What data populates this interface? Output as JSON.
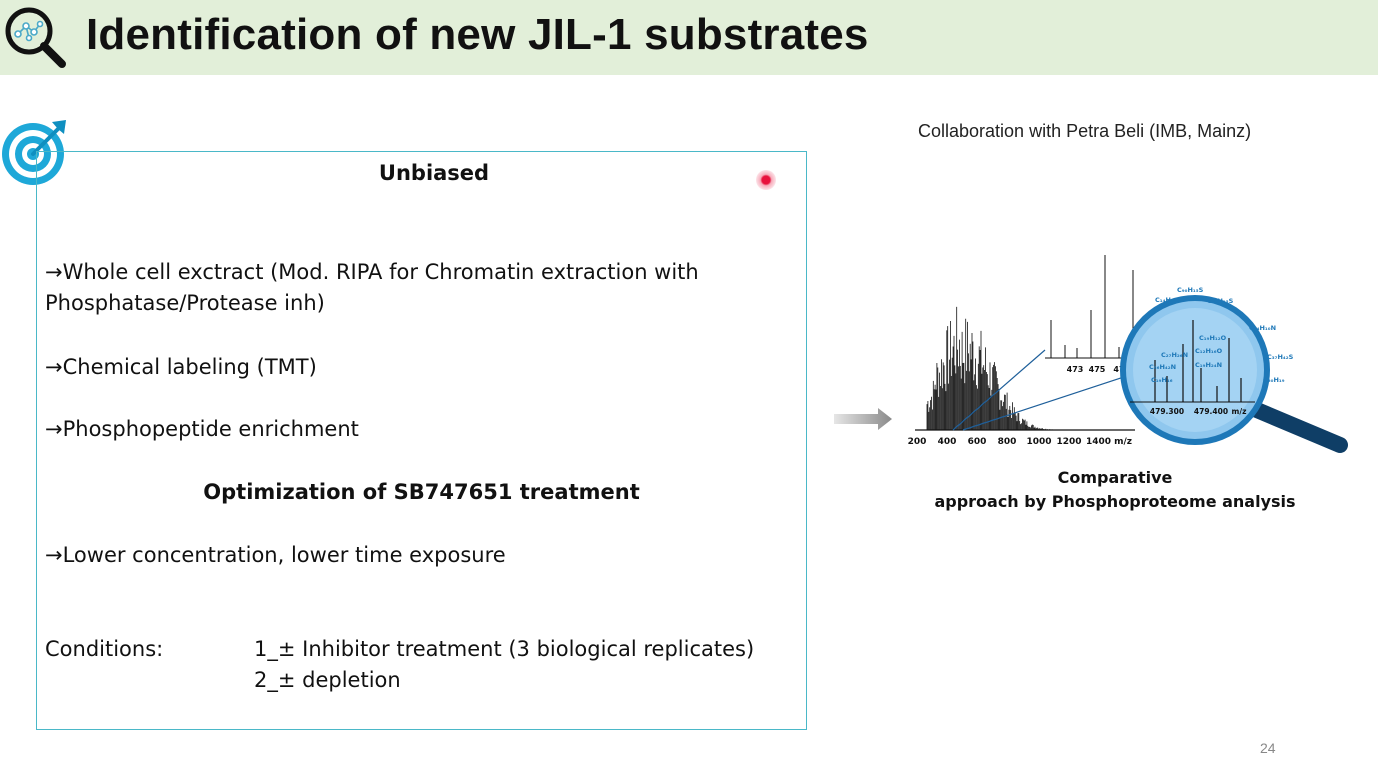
{
  "slide": {
    "title": "Identification of new JIL-1 substrates",
    "page_number": "24"
  },
  "box": {
    "heading_unbiased": "Unbiased",
    "bullets": [
      "→Whole cell exctract (Mod. RIPA for Chromatin extraction with",
      "Phosphatase/Protease inh)",
      "→Chemical labeling (TMT)",
      "→Phosphopeptide enrichment"
    ],
    "heading_optimization": "Optimization of SB747651 treatment",
    "bullet_optimization": "→Lower concentration, lower time exposure",
    "conditions_label": "Conditions:",
    "conditions": [
      "1_± Inhibitor treatment (3 biological replicates)",
      "2_±  depletion"
    ]
  },
  "figure": {
    "collaboration": "Collaboration with Petra Beli (IMB, Mainz)",
    "caption_line1": "Comparative",
    "caption_line2": "approach by Phosphoproteome analysis",
    "x_ticks": [
      "200",
      "400",
      "600",
      "800",
      "1000",
      "1200",
      "1400 m/z"
    ],
    "inset_ticks": [
      "473",
      "475",
      "47"
    ],
    "lens_ticks": [
      "479.300",
      "479.400",
      "m/z"
    ],
    "formulas": [
      "C₉₀H₁₅S",
      "C₁₄H₄₃",
      "C₂₀H₁₅S",
      "C₃₄H₁₀N",
      "C₁₉H₁₂O",
      "C₂₇H₂₆N",
      "C₁₂H₁₆O",
      "C₁₉H₂₄N",
      "C₃₇H₄₂S",
      "C₃₆H₄₂N",
      "C₁₉H₁₆",
      "C₂₀H₁₉"
    ]
  },
  "colors": {
    "header_bg": "#e2efd9",
    "box_border": "#4ab8c8",
    "lens_blue": "#1e78b8"
  }
}
